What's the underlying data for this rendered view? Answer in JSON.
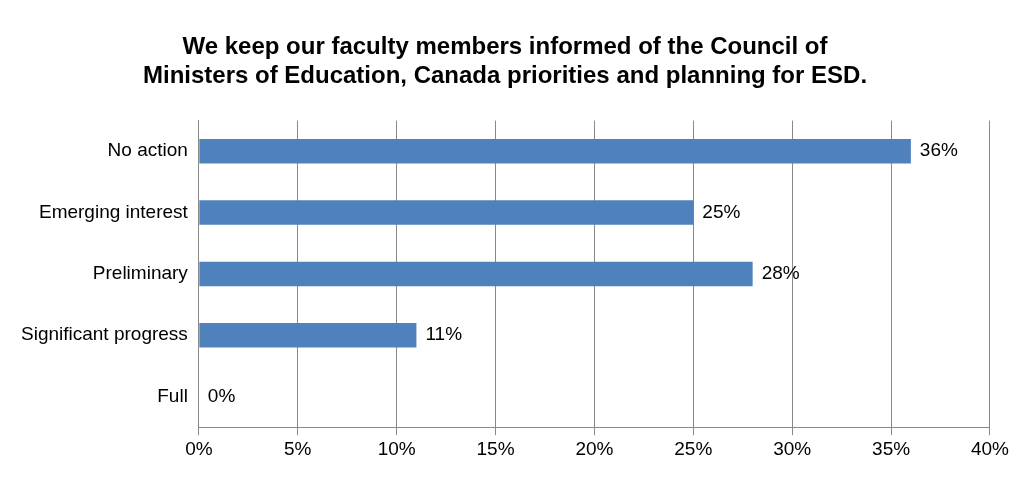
{
  "chart_data": {
    "type": "bar",
    "orientation": "horizontal",
    "title": "We keep our faculty members informed of the Council of\nMinisters of Education, Canada priorities and planning for ESD.",
    "categories": [
      "No action",
      "Emerging interest",
      "Preliminary",
      "Significant progress",
      "Full"
    ],
    "values": [
      36,
      25,
      28,
      11,
      0
    ],
    "value_labels": [
      "36%",
      "25%",
      "28%",
      "11%",
      "0%"
    ],
    "color": "#4f81bd",
    "xlim": [
      0,
      40
    ],
    "xticks": [
      {
        "value": 0,
        "label": "0%"
      },
      {
        "value": 5,
        "label": "5%"
      },
      {
        "value": 10,
        "label": "10%"
      },
      {
        "value": 15,
        "label": "15%"
      },
      {
        "value": 20,
        "label": "20%"
      },
      {
        "value": 25,
        "label": "25%"
      },
      {
        "value": 30,
        "label": "30%"
      },
      {
        "value": 35,
        "label": "35%"
      },
      {
        "value": 40,
        "label": "40%"
      }
    ],
    "grid": "x",
    "legend": false
  }
}
